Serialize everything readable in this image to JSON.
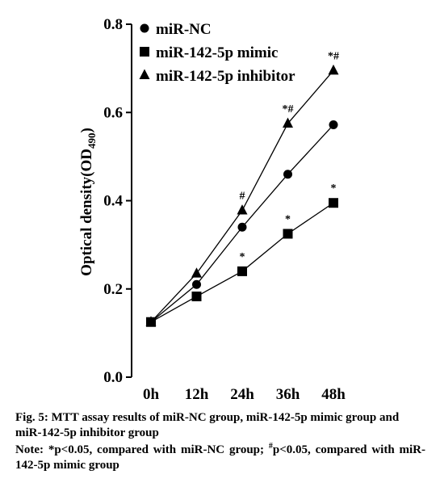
{
  "chart_data": {
    "type": "line",
    "categories": [
      "0h",
      "12h",
      "24h",
      "36h",
      "48h"
    ],
    "ylabel": "Optical density(OD",
    "ylabel_sub": "490",
    "ylabel_close": ")",
    "ylim": [
      0.0,
      0.8
    ],
    "yticks": [
      0.0,
      0.2,
      0.4,
      0.6,
      0.8
    ],
    "ytick_labels": [
      "0.0",
      "0.2",
      "0.4",
      "0.6",
      "0.8"
    ],
    "grid": false,
    "legend_position": "top-left",
    "series": [
      {
        "name": "miR-NC",
        "marker": "circle",
        "values": [
          0.125,
          0.21,
          0.34,
          0.46,
          0.572
        ],
        "annotations": [
          "",
          "",
          "",
          "",
          ""
        ]
      },
      {
        "name": "miR-142-5p mimic",
        "marker": "square",
        "values": [
          0.125,
          0.183,
          0.24,
          0.325,
          0.395
        ],
        "annotations": [
          "",
          "",
          "*",
          "*",
          "*"
        ]
      },
      {
        "name": "miR-142-5p inhibitor",
        "marker": "triangle",
        "values": [
          0.125,
          0.235,
          0.378,
          0.575,
          0.695
        ],
        "annotations": [
          "",
          "",
          "#",
          "*#",
          "*#"
        ]
      }
    ]
  },
  "caption": {
    "title": "Fig. 5: MTT assay results of miR-NC group, miR-142-5p mimic group and miR-142-5p inhibitor group",
    "note_prefix": "Note: *p<0.05, compared with miR-NC group; ",
    "note_hash": "#",
    "note_suffix": "p<0.05, compared with miR-142-5p mimic group"
  },
  "colors": {
    "ink": "#000000",
    "background": "#ffffff"
  }
}
